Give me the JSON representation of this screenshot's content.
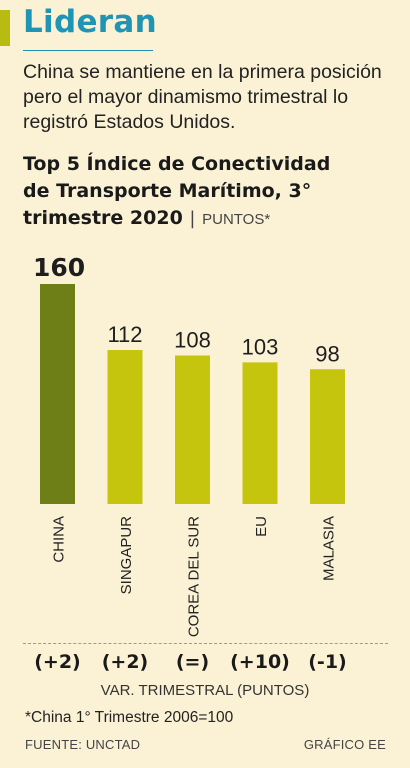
{
  "headline": "Lideran",
  "subtitle": "China se mantiene en la primera posición pero el mayor dinamismo trimestral lo registró Estados Unidos.",
  "chart_title": {
    "line1": "Top 5 Índice de Conectividad",
    "line2": "de Transporte Marítimo, 3°",
    "line3": "trimestre 2020",
    "separator": "|",
    "units": "PUNTOS*"
  },
  "colors": {
    "background": "#fbf2d6",
    "headline": "#1f94b5",
    "accent": "#b8bc12",
    "leader_bar": "#6f7f18",
    "bar": "#c4c50c"
  },
  "chart_data": {
    "type": "bar",
    "categories": [
      "CHINA",
      "SINGAPUR",
      "COREA DEL SUR",
      "EU",
      "MALASIA"
    ],
    "values": [
      160,
      112,
      108,
      103,
      98
    ],
    "data_labels": [
      "160",
      "112",
      "108",
      "103",
      "98"
    ],
    "quarterly_change": [
      "(+2)",
      "(+2)",
      "(=)",
      "(+10)",
      "(-1)"
    ],
    "quarterly_change_label": "VAR. TRIMESTRAL (PUNTOS)",
    "ylim": [
      0,
      160
    ],
    "grid": false,
    "title": "Top 5 Índice de Conectividad de Transporte Marítimo, 3° trimestre 2020",
    "ylabel": "PUNTOS*"
  },
  "footnote": "*China 1° Trimestre 2006=100",
  "source": "FUENTE: UNCTAD",
  "credit": "GRÁFICO EE"
}
